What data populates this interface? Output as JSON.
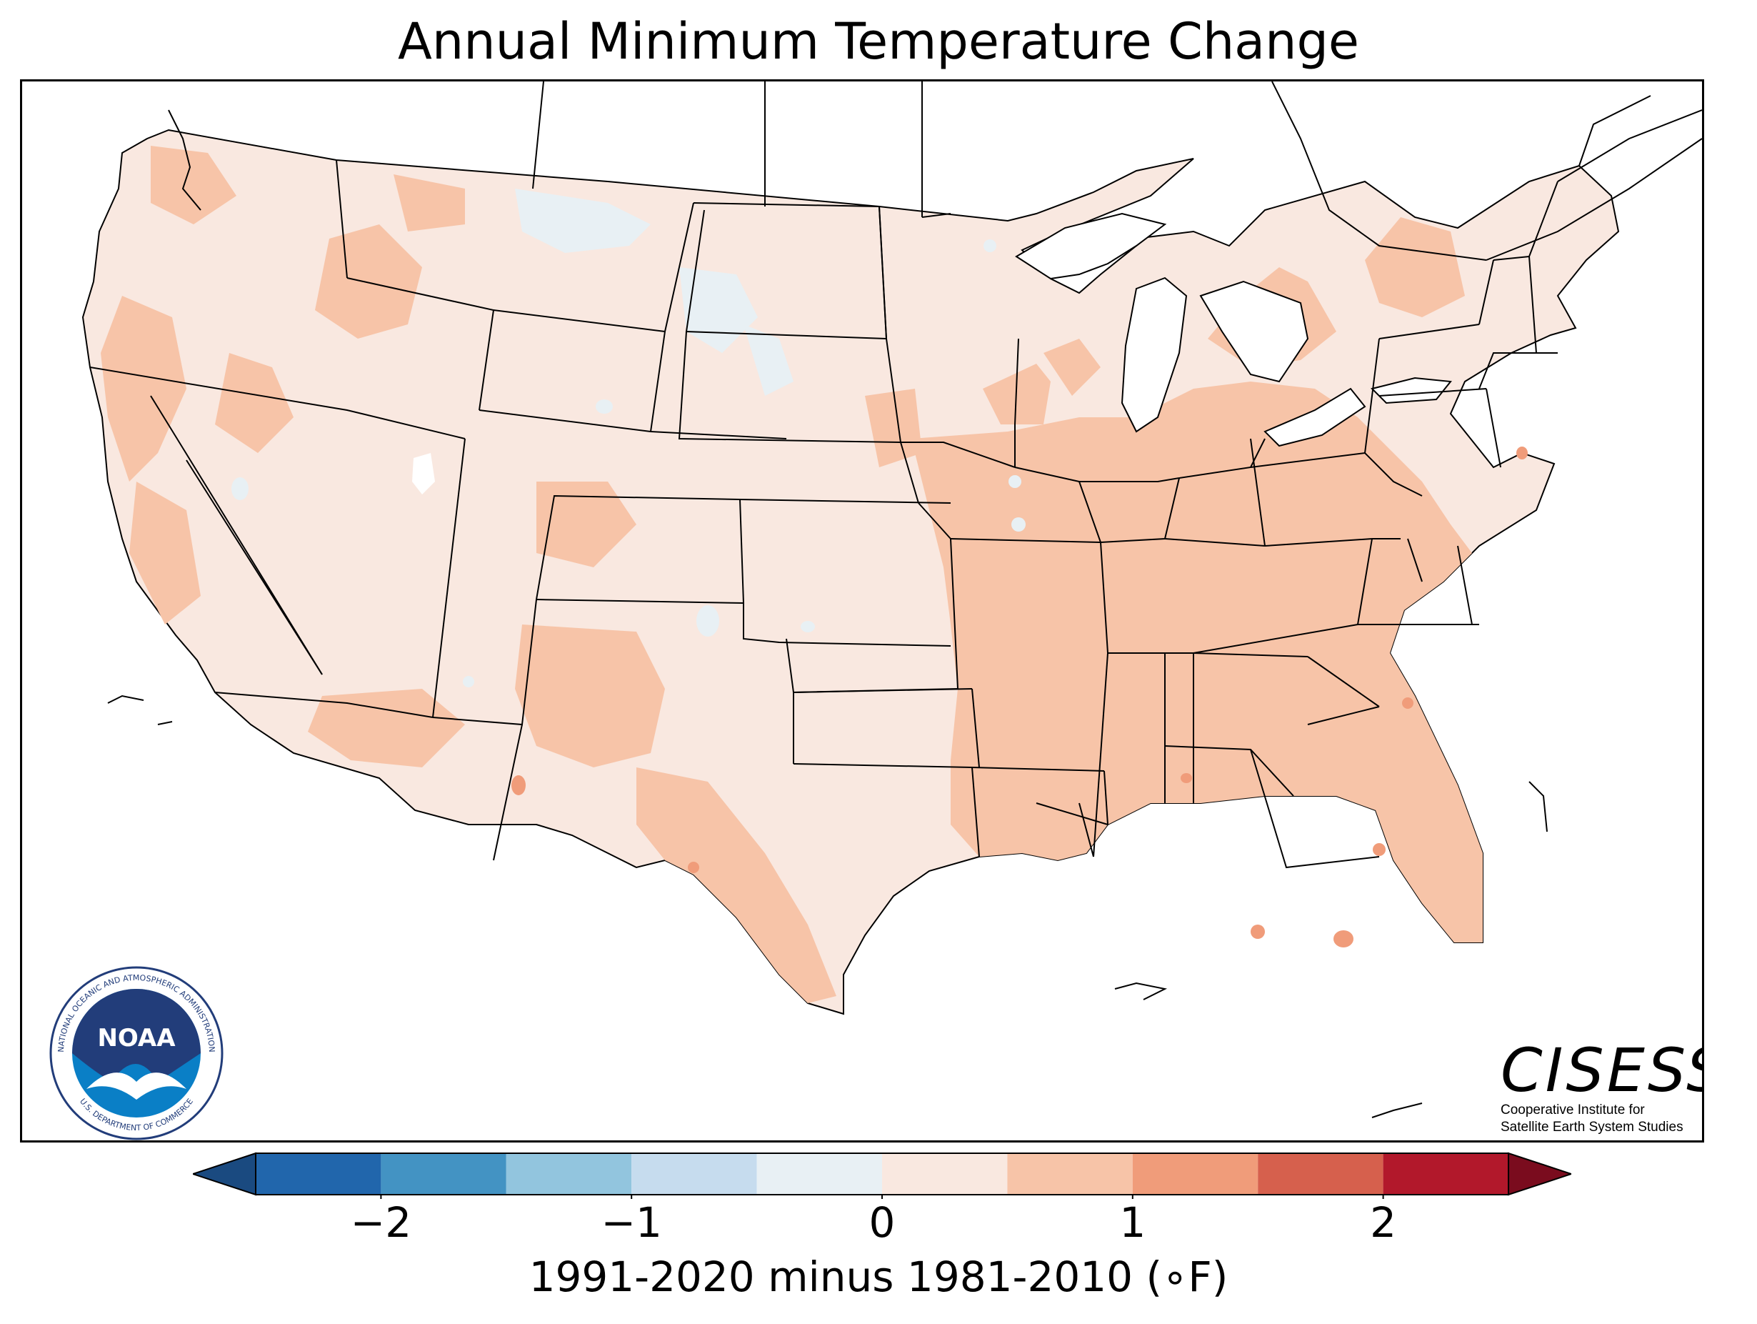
{
  "map": {
    "title": "Annual Minimum Temperature Change",
    "region": "contiguous United States"
  },
  "colorbar": {
    "label": "1991-2020 minus 1981-2010 (∘F)",
    "min": -2.5,
    "max": 2.5,
    "extend": "both",
    "ticks": [
      {
        "value": -2,
        "label": "−2"
      },
      {
        "value": -1,
        "label": "−1"
      },
      {
        "value": 0,
        "label": "0"
      },
      {
        "value": 1,
        "label": "1"
      },
      {
        "value": 2,
        "label": "2"
      }
    ],
    "bins": [
      {
        "from": -2.5,
        "to": -2.0,
        "color": "#2166ac"
      },
      {
        "from": -2.0,
        "to": -1.5,
        "color": "#4393c3"
      },
      {
        "from": -1.5,
        "to": -1.0,
        "color": "#92c5de"
      },
      {
        "from": -1.0,
        "to": -0.5,
        "color": "#c6dcee"
      },
      {
        "from": -0.5,
        "to": 0.0,
        "color": "#e8f0f4"
      },
      {
        "from": 0.0,
        "to": 0.5,
        "color": "#f9e8e0"
      },
      {
        "from": 0.5,
        "to": 1.0,
        "color": "#f7c4a8"
      },
      {
        "from": 1.0,
        "to": 1.5,
        "color": "#f09c7a"
      },
      {
        "from": 1.5,
        "to": 2.0,
        "color": "#d6604d"
      },
      {
        "from": 2.0,
        "to": 2.5,
        "color": "#b2182b"
      }
    ],
    "under_color": "#1a4a80",
    "over_color": "#7a0c1e"
  },
  "legend": {
    "noaa": {
      "abbr": "NOAA",
      "ring_text": "NATIONAL OCEANIC AND ATMOSPHERIC ADMINISTRATION",
      "ring_text_bottom": "U.S. DEPARTMENT OF COMMERCE"
    },
    "cisess": {
      "name": "CISESS",
      "line1": "Cooperative Institute for",
      "line2": "Satellite Earth System Studies"
    }
  },
  "colors": {
    "land_light": "#f9e8e0",
    "land_mid": "#f7c4a8",
    "land_high": "#f09c7a",
    "cool": "#e8f0f4",
    "borders": "#000000",
    "noaa_navy": "#223d7a",
    "noaa_blue": "#0a7fc6"
  }
}
